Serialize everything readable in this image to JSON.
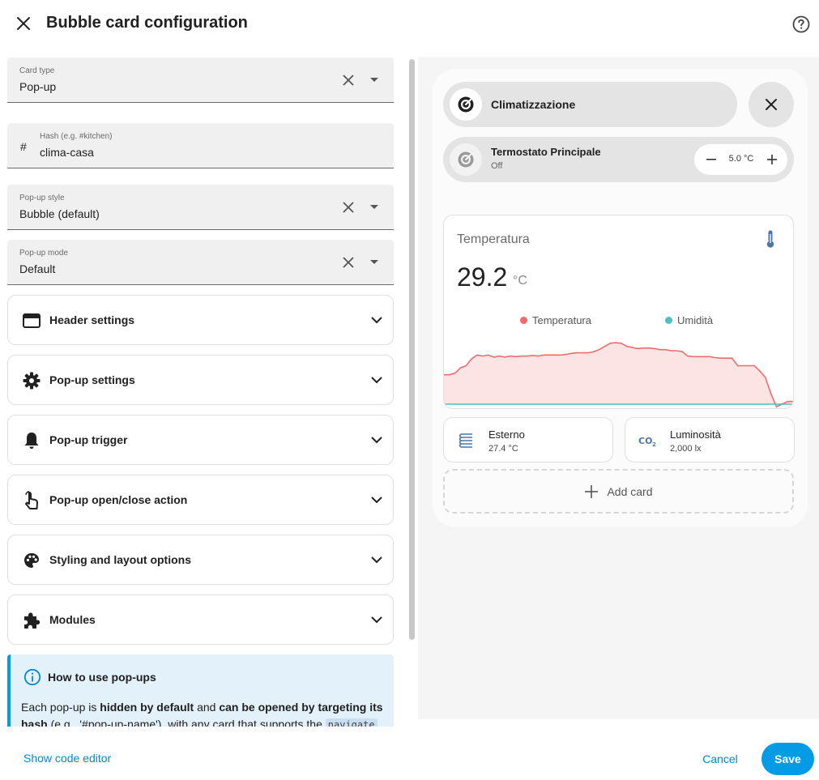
{
  "header": {
    "title": "Bubble card configuration",
    "close_icon": "close-icon",
    "help_icon": "help-circle-icon"
  },
  "form": {
    "card_type": {
      "label": "Card type",
      "value": "Pop-up"
    },
    "hash": {
      "label": "Hash (e.g. #kitchen)",
      "prefix": "#",
      "value": "clima-casa"
    },
    "popup_style": {
      "label": "Pop-up style",
      "value": "Bubble (default)"
    },
    "popup_mode": {
      "label": "Pop-up mode",
      "value": "Default"
    }
  },
  "sections": [
    {
      "label": "Header settings",
      "icon": "header-icon"
    },
    {
      "label": "Pop-up settings",
      "icon": "gear-icon"
    },
    {
      "label": "Pop-up trigger",
      "icon": "bell-icon"
    },
    {
      "label": "Pop-up open/close action",
      "icon": "tap-hand-icon"
    },
    {
      "label": "Styling and layout options",
      "icon": "palette-icon"
    },
    {
      "label": "Modules",
      "icon": "puzzle-icon"
    }
  ],
  "info": {
    "title": "How to use pop-ups",
    "text_1": "Each pop-up is ",
    "bold_1": "hidden by default",
    "text_2": " and ",
    "bold_2": "can be opened by targeting its hash",
    "text_3": " (e.g., '#pop-up-name'), with any card that supports the ",
    "code": "navigate"
  },
  "preview": {
    "header_pill": {
      "name": "Climatizzazione",
      "icon": "air-conditioner-icon"
    },
    "close_icon": "close-icon",
    "thermostat": {
      "name": "Termostato Principale",
      "state": "Off",
      "value": "5.0 °C",
      "icon": "thermostat-icon"
    },
    "sensor": {
      "name": "Temperatura",
      "value": "29.2",
      "unit": "°C",
      "icon": "thermometer-icon",
      "legend": [
        {
          "name": "Temperatura",
          "color": "#ef6c6c"
        },
        {
          "name": "Umidità",
          "color": "#4dc0c0"
        }
      ]
    },
    "mini_cards": [
      {
        "name": "Esterno",
        "value": "27.4 °C",
        "icon": "radiator-icon"
      },
      {
        "name": "Luminosità",
        "value": "2,000 lx",
        "icon": "co2-icon"
      }
    ],
    "add_card_label": "Add card"
  },
  "chart_data": {
    "type": "area",
    "title": "",
    "series": [
      {
        "name": "Temperatura",
        "color": "#ef6c6c",
        "values": [
          0.55,
          0.55,
          0.58,
          0.68,
          0.72,
          0.85,
          0.92,
          0.9,
          0.92,
          0.88,
          0.9,
          0.88,
          0.9,
          0.89,
          0.9,
          0.9,
          0.91,
          0.9,
          0.92,
          0.92,
          0.92,
          0.92,
          0.93,
          0.95,
          0.96,
          0.96,
          0.96,
          0.98,
          1.02,
          1.08,
          1.14,
          1.15,
          1.14,
          1.08,
          1.06,
          1.04,
          1.05,
          1.05,
          1.04,
          1.02,
          1.02,
          1.0,
          1.0,
          0.98,
          0.9,
          0.89,
          0.89,
          0.89,
          0.89,
          0.87,
          0.86,
          0.86,
          0.86,
          0.72,
          0.72,
          0.72,
          0.72,
          0.62,
          0.5,
          0.2,
          -0.05,
          0.0,
          0.05,
          0.05
        ]
      },
      {
        "name": "Umidità",
        "color": "#4dc0c0",
        "values": [
          0,
          0,
          0,
          0,
          0,
          0,
          0,
          0,
          0,
          0,
          0,
          0,
          0,
          0,
          0,
          0,
          0,
          0,
          0,
          0,
          0,
          0,
          0,
          0,
          0,
          0,
          0,
          0,
          0,
          0,
          0,
          0,
          0,
          0,
          0,
          0,
          0,
          0,
          0,
          0,
          0,
          0,
          0,
          0,
          0,
          0,
          0,
          0,
          0,
          0,
          0,
          0,
          0,
          0,
          0,
          0,
          0,
          0,
          0,
          0,
          0,
          0,
          0,
          0
        ]
      }
    ],
    "legend": "top-center",
    "grid": false
  },
  "footer": {
    "show_code_label": "Show code editor",
    "cancel_label": "Cancel",
    "save_label": "Save"
  }
}
